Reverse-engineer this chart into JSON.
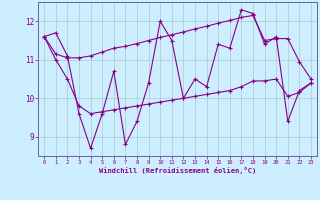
{
  "xlabel": "Windchill (Refroidissement éolien,°C)",
  "x": [
    0,
    1,
    2,
    3,
    4,
    5,
    6,
    7,
    8,
    9,
    10,
    11,
    12,
    13,
    14,
    15,
    16,
    17,
    18,
    19,
    20,
    21,
    22,
    23
  ],
  "y_main": [
    11.6,
    11.7,
    11.1,
    9.6,
    8.7,
    9.6,
    10.7,
    8.8,
    9.4,
    10.4,
    12.0,
    11.5,
    10.0,
    10.5,
    10.3,
    11.4,
    11.3,
    12.3,
    12.2,
    11.4,
    11.6,
    9.4,
    10.2,
    10.4
  ],
  "y_upper": [
    11.6,
    11.15,
    11.05,
    11.05,
    11.1,
    11.2,
    11.3,
    11.35,
    11.42,
    11.5,
    11.58,
    11.65,
    11.72,
    11.8,
    11.87,
    11.95,
    12.02,
    12.1,
    12.15,
    11.5,
    11.55,
    11.55,
    10.95,
    10.5
  ],
  "y_lower": [
    11.6,
    11.0,
    10.5,
    9.8,
    9.6,
    9.65,
    9.7,
    9.75,
    9.8,
    9.85,
    9.9,
    9.95,
    10.0,
    10.05,
    10.1,
    10.15,
    10.2,
    10.3,
    10.45,
    10.45,
    10.5,
    10.05,
    10.15,
    10.4
  ],
  "line_color": "#880088",
  "bg_color": "#cceeff",
  "grid_color": "#aacccc",
  "ylim": [
    8.5,
    12.5
  ],
  "yticks": [
    9,
    10,
    11,
    12
  ],
  "xlim": [
    -0.5,
    23.5
  ]
}
